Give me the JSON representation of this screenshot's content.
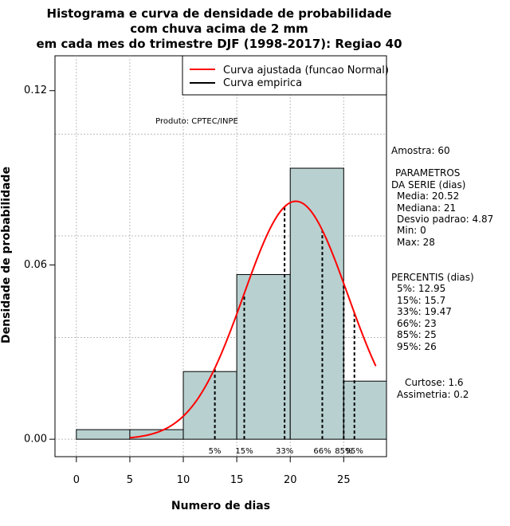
{
  "chart_data": {
    "type": "bar",
    "title_lines": [
      "Histograma e curva de densidade de probabilidade",
      "com chuva acima de 2 mm",
      "em cada mes do trimestre DJF (1998-2017): Regiao 40"
    ],
    "xlabel": "Numero de dias",
    "ylabel": "Densidade de probabilidade",
    "xlim": [
      -2,
      29
    ],
    "ylim": [
      -0.006,
      0.132
    ],
    "x_ticks": [
      "0",
      "5",
      "10",
      "15",
      "20",
      "25"
    ],
    "x_tick_values": [
      0,
      5,
      10,
      15,
      20,
      25
    ],
    "y_ticks": [
      "0.00",
      "0.06",
      "0.12"
    ],
    "y_tick_values": [
      0.0,
      0.06,
      0.12
    ],
    "grid": true,
    "bins": [
      {
        "start": 0,
        "end": 5,
        "density": 0.0033
      },
      {
        "start": 5,
        "end": 10,
        "density": 0.0033
      },
      {
        "start": 10,
        "end": 15,
        "density": 0.0233
      },
      {
        "start": 15,
        "end": 20,
        "density": 0.0567
      },
      {
        "start": 20,
        "end": 25,
        "density": 0.0933
      },
      {
        "start": 25,
        "end": 29,
        "density": 0.02
      }
    ],
    "normal_curve": {
      "name": "Curva ajustada (funcao Normal)",
      "mean": 20.52,
      "sd": 4.87,
      "x_range": [
        5,
        28
      ],
      "color": "#ff0000"
    },
    "percentile_lines": [
      {
        "label": "5%",
        "x": 12.95
      },
      {
        "label": "15%",
        "x": 15.7
      },
      {
        "label": "33%",
        "x": 19.47
      },
      {
        "label": "66%",
        "x": 23
      },
      {
        "label": "85%",
        "x": 25
      },
      {
        "label": "95%",
        "x": 26
      }
    ],
    "legend": [
      {
        "label": "Curva ajustada (funcao Normal)",
        "color": "#ff0000"
      },
      {
        "label": "Curva empirica",
        "color": "#000000"
      }
    ],
    "annotation": "Produto: CPTEC/INPE",
    "bar_fill": "#b8d0d0",
    "side_text": {
      "amostra": "Amostra: 60",
      "parametros": [
        "PARAMETROS",
        "DA SERIE (dias)",
        "Media: 20.52",
        "Mediana: 21",
        "Desvio padrao: 4.87",
        "Min: 0",
        "Max: 28"
      ],
      "percentis": [
        "PERCENTIS (dias)",
        "5%: 12.95",
        "15%: 15.7",
        "33%: 19.47",
        "66%: 23",
        "85%: 25",
        "95%: 26"
      ],
      "shape": [
        "Curtose: 1.6",
        "Assimetria: 0.2"
      ]
    }
  }
}
